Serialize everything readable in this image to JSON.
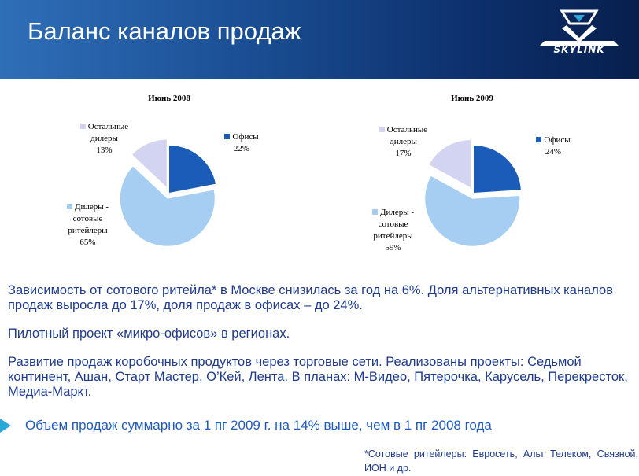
{
  "header": {
    "title": "Баланс каналов продаж",
    "logo_text": "SKYLINK"
  },
  "chart_data": [
    {
      "type": "pie",
      "title": "Июнь 2008",
      "slices": [
        {
          "label": "Офисы",
          "value": 22,
          "value_label": "22%",
          "color": "#1a5cb8"
        },
        {
          "label": "Дилеры - сотовые ритейлеры",
          "value": 65,
          "value_label": "65%",
          "color": "#a6cef2"
        },
        {
          "label": "Остальные дилеры",
          "value": 13,
          "value_label": "13%",
          "color": "#d3d3f2"
        }
      ]
    },
    {
      "type": "pie",
      "title": "Июнь 2009",
      "slices": [
        {
          "label": "Офисы",
          "value": 24,
          "value_label": "24%",
          "color": "#1a5cb8"
        },
        {
          "label": "Дилеры - сотовые ритейлеры",
          "value": 59,
          "value_label": "59%",
          "color": "#a6cef2"
        },
        {
          "label": "Остальные дилеры",
          "value": 17,
          "value_label": "17%",
          "color": "#d3d3f2"
        }
      ]
    }
  ],
  "labels": {
    "c1": {
      "offices": [
        "Офисы",
        "22%"
      ],
      "dealers": [
        "Дилеры -",
        "сотовые",
        "ритейлеры",
        "65%"
      ],
      "others": [
        "Остальные",
        "дилеры",
        "13%"
      ]
    },
    "c2": {
      "offices": [
        "Офисы",
        "24%"
      ],
      "dealers": [
        "Дилеры -",
        "сотовые",
        "ритейлеры",
        "59%"
      ],
      "others": [
        "Остальные",
        "дилеры",
        "17%"
      ]
    }
  },
  "body": {
    "p1": "Зависимость от сотового ритейла* в Москве снизилась за год на 6%. Доля альтернативных каналов продаж выросла до 17%, доля продаж в офисах – до 24%.",
    "p2": "Пилотный проект «микро-офисов» в регионах.",
    "p3": "Развитие продаж коробочных продуктов через торговые сети. Реализованы проекты: Седьмой континент, Ашан, Старт Мастер, О’Кей, Лента. В планах: М-Видео, Пятерочка, Карусель, Перекресток, Медиа-Маркт.",
    "highlight": "Объем продаж суммарно за 1 пг 2009 г. на 14% выше, чем в 1 пг 2008 года",
    "footnote": "*Сотовые ритейлеры: Евросеть, Альт Телеком, Связной, ИОН и др."
  },
  "colors": {
    "header_dark": "#0d2f6b",
    "text_blue": "#1f3b8c",
    "accent": "#2aa7d6"
  }
}
